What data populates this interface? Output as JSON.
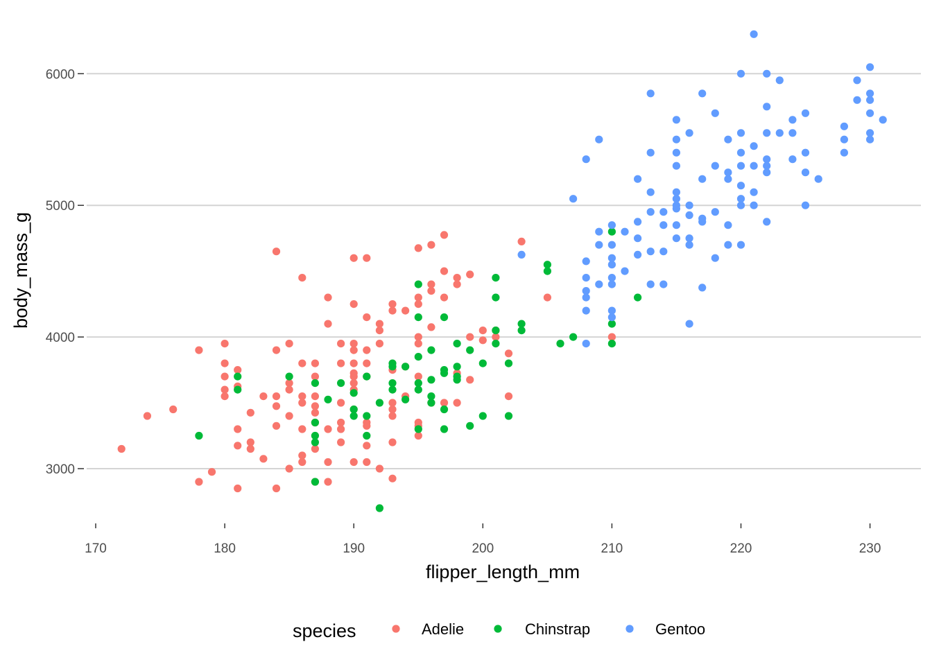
{
  "chart_data": {
    "type": "scatter",
    "title": "",
    "xlabel": "flipper_length_mm",
    "ylabel": "body_mass_g",
    "xlim": [
      169,
      233
    ],
    "ylim": [
      2550,
      6400
    ],
    "x_ticks": [
      170,
      180,
      190,
      200,
      210,
      220,
      230
    ],
    "y_ticks": [
      3000,
      4000,
      5000,
      6000
    ],
    "grid": "horizontal major lines only",
    "legend": {
      "title": "species",
      "position": "bottom",
      "entries": [
        "Adelie",
        "Chinstrap",
        "Gentoo"
      ]
    },
    "series": [
      {
        "name": "Adelie",
        "color": "#F8766D",
        "points": [
          [
            172,
            3150
          ],
          [
            174,
            3400
          ],
          [
            176,
            3450
          ],
          [
            178,
            3900
          ],
          [
            178,
            2900
          ],
          [
            179,
            2975
          ],
          [
            180,
            3950
          ],
          [
            180,
            3800
          ],
          [
            180,
            3700
          ],
          [
            180,
            3600
          ],
          [
            180,
            3550
          ],
          [
            181,
            3750
          ],
          [
            181,
            3625
          ],
          [
            181,
            3300
          ],
          [
            181,
            3175
          ],
          [
            181,
            2850
          ],
          [
            182,
            3425
          ],
          [
            182,
            3200
          ],
          [
            182,
            3150
          ],
          [
            183,
            3550
          ],
          [
            183,
            3075
          ],
          [
            184,
            4650
          ],
          [
            184,
            3900
          ],
          [
            184,
            3550
          ],
          [
            184,
            3475
          ],
          [
            184,
            3325
          ],
          [
            184,
            2850
          ],
          [
            185,
            3950
          ],
          [
            185,
            3650
          ],
          [
            185,
            3600
          ],
          [
            185,
            3400
          ],
          [
            185,
            3000
          ],
          [
            186,
            4450
          ],
          [
            186,
            3800
          ],
          [
            186,
            3550
          ],
          [
            186,
            3500
          ],
          [
            186,
            3300
          ],
          [
            186,
            3100
          ],
          [
            186,
            3050
          ],
          [
            187,
            3800
          ],
          [
            187,
            3700
          ],
          [
            187,
            3550
          ],
          [
            187,
            3475
          ],
          [
            187,
            3425
          ],
          [
            187,
            3350
          ],
          [
            187,
            3150
          ],
          [
            187,
            2900
          ],
          [
            188,
            4300
          ],
          [
            188,
            4100
          ],
          [
            188,
            3300
          ],
          [
            188,
            3050
          ],
          [
            188,
            2900
          ],
          [
            189,
            3950
          ],
          [
            189,
            3800
          ],
          [
            189,
            3500
          ],
          [
            189,
            3350
          ],
          [
            189,
            3300
          ],
          [
            189,
            3200
          ],
          [
            190,
            4600
          ],
          [
            190,
            4250
          ],
          [
            190,
            3950
          ],
          [
            190,
            3900
          ],
          [
            190,
            3800
          ],
          [
            190,
            3725
          ],
          [
            190,
            3700
          ],
          [
            190,
            3650
          ],
          [
            190,
            3600
          ],
          [
            190,
            3450
          ],
          [
            190,
            3050
          ],
          [
            191,
            4600
          ],
          [
            191,
            4150
          ],
          [
            191,
            3900
          ],
          [
            191,
            3800
          ],
          [
            191,
            3700
          ],
          [
            191,
            3350
          ],
          [
            191,
            3325
          ],
          [
            191,
            3175
          ],
          [
            191,
            3050
          ],
          [
            192,
            4100
          ],
          [
            192,
            4050
          ],
          [
            192,
            3950
          ],
          [
            192,
            3000
          ],
          [
            193,
            4250
          ],
          [
            193,
            4200
          ],
          [
            193,
            3750
          ],
          [
            193,
            3500
          ],
          [
            193,
            3450
          ],
          [
            193,
            3400
          ],
          [
            193,
            3200
          ],
          [
            193,
            2925
          ],
          [
            194,
            4200
          ],
          [
            194,
            3550
          ],
          [
            194,
            3775
          ],
          [
            195,
            4675
          ],
          [
            195,
            4300
          ],
          [
            195,
            4250
          ],
          [
            195,
            4000
          ],
          [
            195,
            3950
          ],
          [
            195,
            3700
          ],
          [
            195,
            3350
          ],
          [
            195,
            3325
          ],
          [
            195,
            3250
          ],
          [
            196,
            4700
          ],
          [
            196,
            4400
          ],
          [
            196,
            4350
          ],
          [
            196,
            4075
          ],
          [
            196,
            3500
          ],
          [
            197,
            4775
          ],
          [
            197,
            4500
          ],
          [
            197,
            4300
          ],
          [
            197,
            3500
          ],
          [
            198,
            4450
          ],
          [
            198,
            4400
          ],
          [
            198,
            3500
          ],
          [
            198,
            3725
          ],
          [
            199,
            4475
          ],
          [
            199,
            4000
          ],
          [
            199,
            3675
          ],
          [
            200,
            4050
          ],
          [
            200,
            3975
          ],
          [
            201,
            4000
          ],
          [
            201,
            4050
          ],
          [
            202,
            3875
          ],
          [
            202,
            3550
          ],
          [
            203,
            4725
          ],
          [
            205,
            4300
          ],
          [
            210,
            4000
          ]
        ]
      },
      {
        "name": "Chinstrap",
        "color": "#00BA38",
        "points": [
          [
            178,
            3250
          ],
          [
            181,
            3700
          ],
          [
            181,
            3600
          ],
          [
            185,
            3700
          ],
          [
            187,
            3650
          ],
          [
            187,
            3350
          ],
          [
            187,
            3250
          ],
          [
            187,
            3200
          ],
          [
            187,
            2900
          ],
          [
            188,
            3525
          ],
          [
            189,
            3650
          ],
          [
            190,
            3575
          ],
          [
            190,
            3450
          ],
          [
            190,
            3400
          ],
          [
            191,
            3700
          ],
          [
            191,
            3400
          ],
          [
            191,
            3250
          ],
          [
            192,
            3500
          ],
          [
            192,
            2700
          ],
          [
            193,
            3800
          ],
          [
            193,
            3775
          ],
          [
            193,
            3650
          ],
          [
            193,
            3600
          ],
          [
            194,
            3775
          ],
          [
            194,
            3525
          ],
          [
            195,
            4400
          ],
          [
            195,
            4150
          ],
          [
            195,
            3850
          ],
          [
            195,
            3650
          ],
          [
            195,
            3600
          ],
          [
            195,
            3300
          ],
          [
            196,
            3900
          ],
          [
            196,
            3675
          ],
          [
            196,
            3550
          ],
          [
            196,
            3500
          ],
          [
            197,
            4150
          ],
          [
            197,
            3750
          ],
          [
            197,
            3725
          ],
          [
            197,
            3450
          ],
          [
            197,
            3300
          ],
          [
            198,
            3950
          ],
          [
            198,
            3775
          ],
          [
            198,
            3700
          ],
          [
            198,
            3675
          ],
          [
            199,
            3900
          ],
          [
            199,
            3325
          ],
          [
            200,
            3800
          ],
          [
            200,
            3400
          ],
          [
            201,
            4450
          ],
          [
            201,
            4300
          ],
          [
            201,
            4050
          ],
          [
            201,
            3950
          ],
          [
            202,
            3800
          ],
          [
            202,
            3400
          ],
          [
            203,
            4100
          ],
          [
            203,
            4050
          ],
          [
            205,
            4550
          ],
          [
            205,
            4500
          ],
          [
            206,
            3950
          ],
          [
            207,
            4000
          ],
          [
            210,
            4800
          ],
          [
            210,
            4100
          ],
          [
            210,
            3950
          ],
          [
            212,
            4300
          ]
        ]
      },
      {
        "name": "Gentoo",
        "color": "#619CFF",
        "points": [
          [
            203,
            4625
          ],
          [
            207,
            5050
          ],
          [
            208,
            5350
          ],
          [
            208,
            4575
          ],
          [
            208,
            4450
          ],
          [
            208,
            4350
          ],
          [
            208,
            4300
          ],
          [
            208,
            4200
          ],
          [
            208,
            3950
          ],
          [
            209,
            5500
          ],
          [
            209,
            4800
          ],
          [
            209,
            4700
          ],
          [
            209,
            4400
          ],
          [
            210,
            4850
          ],
          [
            210,
            4700
          ],
          [
            210,
            4600
          ],
          [
            210,
            4550
          ],
          [
            210,
            4450
          ],
          [
            210,
            4400
          ],
          [
            210,
            4200
          ],
          [
            210,
            4150
          ],
          [
            211,
            4800
          ],
          [
            211,
            4500
          ],
          [
            212,
            5200
          ],
          [
            212,
            4875
          ],
          [
            212,
            4750
          ],
          [
            212,
            4625
          ],
          [
            213,
            5850
          ],
          [
            213,
            5400
          ],
          [
            213,
            5100
          ],
          [
            213,
            4950
          ],
          [
            213,
            4650
          ],
          [
            213,
            4400
          ],
          [
            214,
            4950
          ],
          [
            214,
            4850
          ],
          [
            214,
            4650
          ],
          [
            214,
            4400
          ],
          [
            215,
            5650
          ],
          [
            215,
            5500
          ],
          [
            215,
            5400
          ],
          [
            215,
            5300
          ],
          [
            215,
            5100
          ],
          [
            215,
            5050
          ],
          [
            215,
            5000
          ],
          [
            215,
            4975
          ],
          [
            215,
            4850
          ],
          [
            215,
            4750
          ],
          [
            216,
            5550
          ],
          [
            216,
            5000
          ],
          [
            216,
            4925
          ],
          [
            216,
            4750
          ],
          [
            216,
            4700
          ],
          [
            216,
            4100
          ],
          [
            217,
            5850
          ],
          [
            217,
            5200
          ],
          [
            217,
            4900
          ],
          [
            217,
            4875
          ],
          [
            217,
            4375
          ],
          [
            218,
            5700
          ],
          [
            218,
            5300
          ],
          [
            218,
            4950
          ],
          [
            218,
            4600
          ],
          [
            219,
            5500
          ],
          [
            219,
            5250
          ],
          [
            219,
            5200
          ],
          [
            219,
            4850
          ],
          [
            219,
            4700
          ],
          [
            220,
            6000
          ],
          [
            220,
            5550
          ],
          [
            220,
            5400
          ],
          [
            220,
            5300
          ],
          [
            220,
            5150
          ],
          [
            220,
            5050
          ],
          [
            220,
            5000
          ],
          [
            220,
            4700
          ],
          [
            221,
            6300
          ],
          [
            221,
            5450
          ],
          [
            221,
            5300
          ],
          [
            221,
            5100
          ],
          [
            221,
            5000
          ],
          [
            222,
            6000
          ],
          [
            222,
            5750
          ],
          [
            222,
            5550
          ],
          [
            222,
            5350
          ],
          [
            222,
            5300
          ],
          [
            222,
            5250
          ],
          [
            222,
            4875
          ],
          [
            223,
            5950
          ],
          [
            223,
            5550
          ],
          [
            224,
            5650
          ],
          [
            224,
            5550
          ],
          [
            224,
            5350
          ],
          [
            225,
            5700
          ],
          [
            225,
            5400
          ],
          [
            225,
            5250
          ],
          [
            225,
            5000
          ],
          [
            226,
            5200
          ],
          [
            228,
            5600
          ],
          [
            228,
            5500
          ],
          [
            228,
            5400
          ],
          [
            229,
            5950
          ],
          [
            229,
            5800
          ],
          [
            230,
            6050
          ],
          [
            230,
            5850
          ],
          [
            230,
            5800
          ],
          [
            230,
            5700
          ],
          [
            230,
            5550
          ],
          [
            230,
            5500
          ],
          [
            231,
            5650
          ]
        ]
      }
    ]
  }
}
